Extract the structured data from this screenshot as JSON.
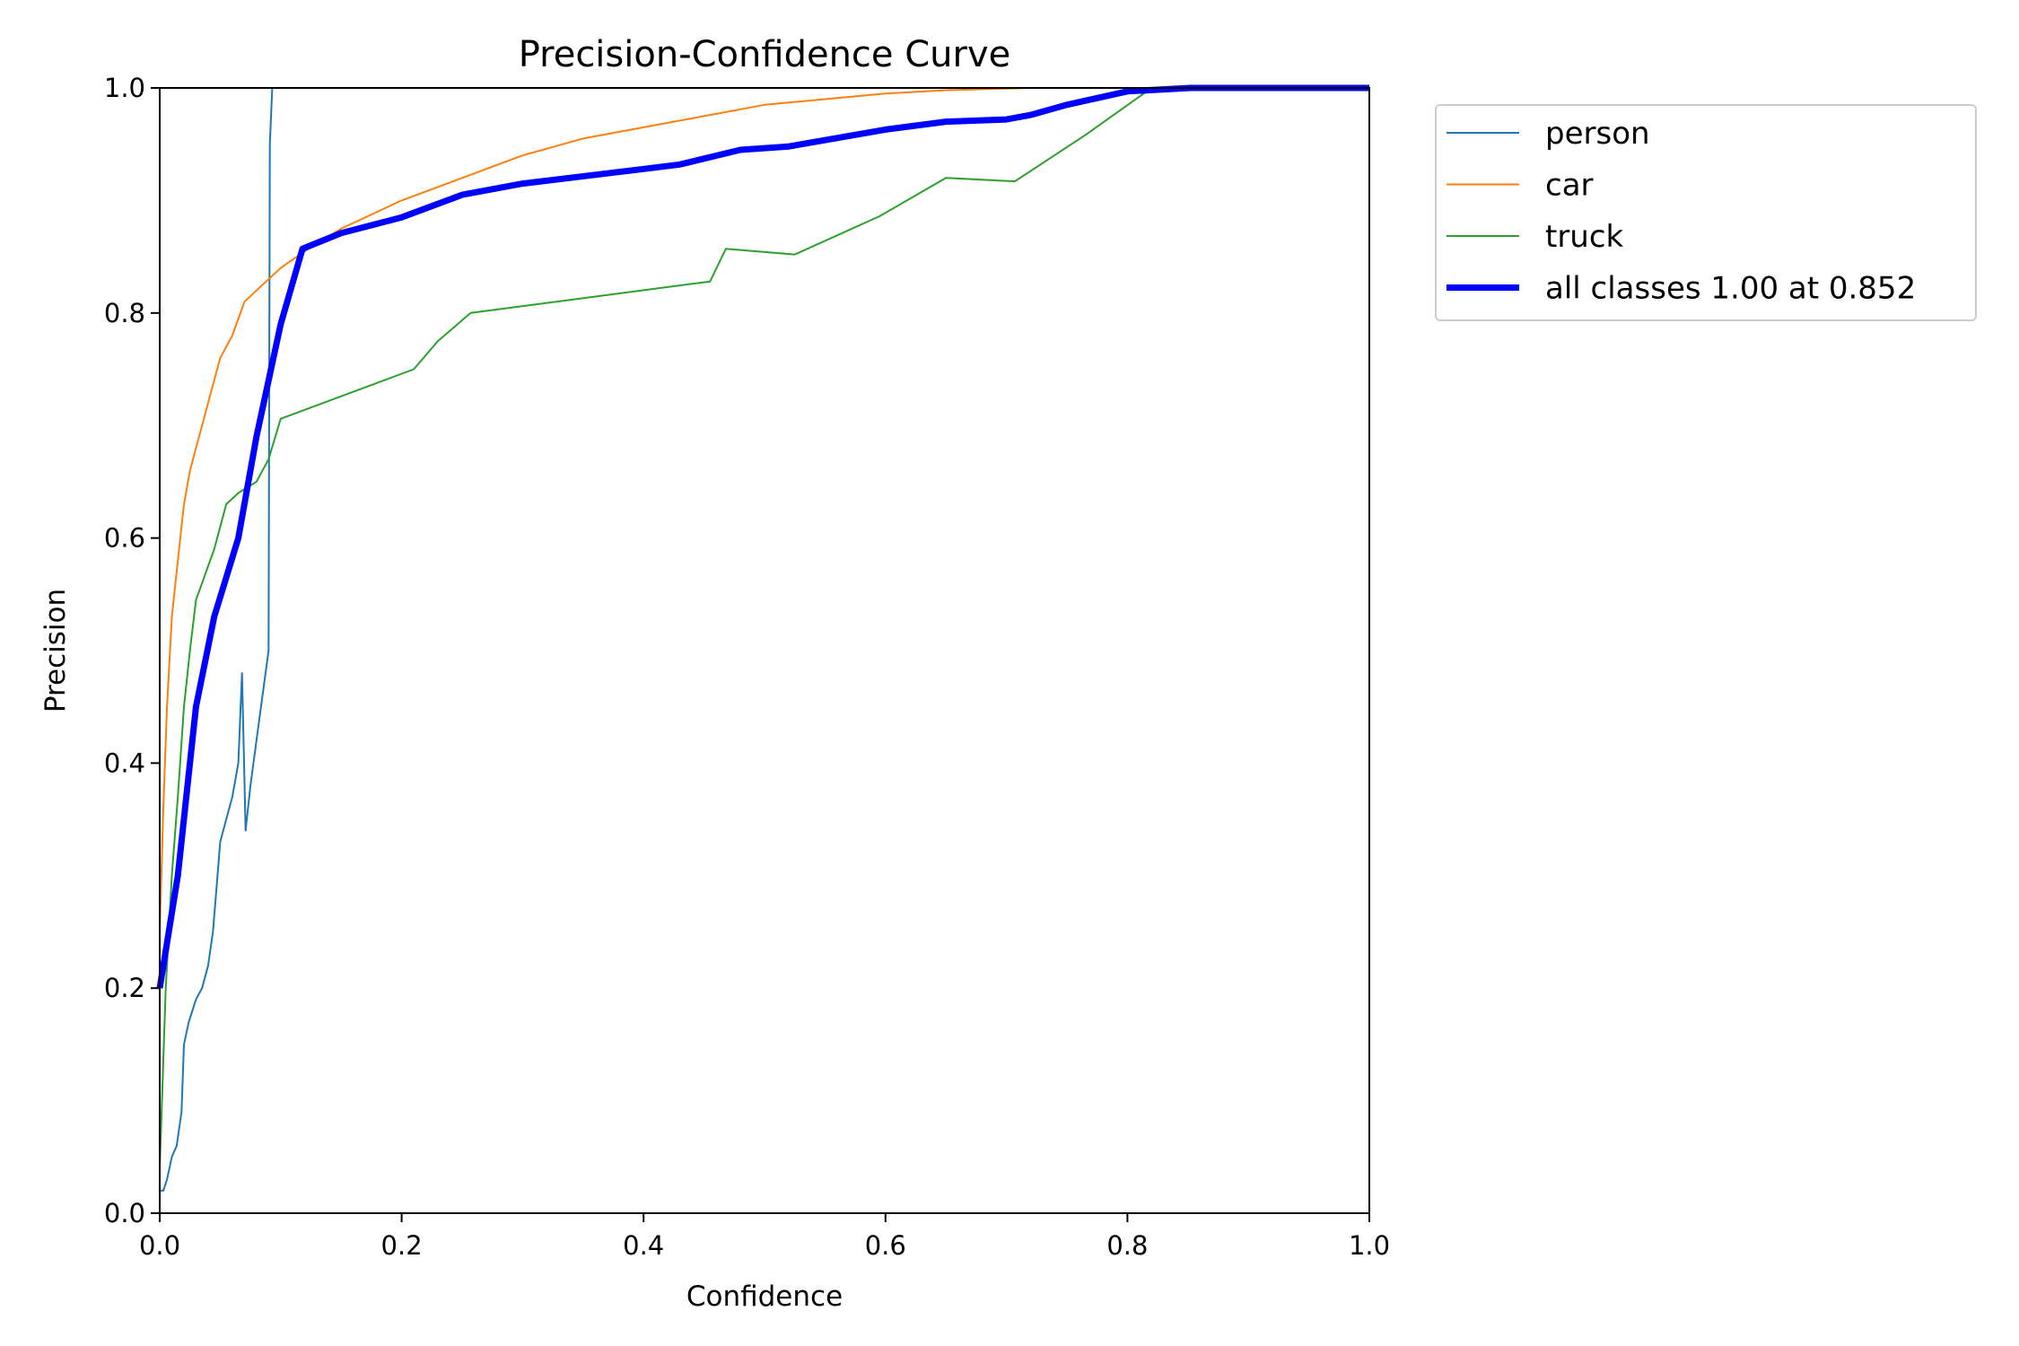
{
  "chart_data": {
    "type": "line",
    "title": "Precision-Confidence Curve",
    "xlabel": "Confidence",
    "ylabel": "Precision",
    "xlim": [
      0,
      1
    ],
    "ylim": [
      0,
      1
    ],
    "xticks": [
      "0.0",
      "0.2",
      "0.4",
      "0.6",
      "0.8",
      "1.0"
    ],
    "yticks": [
      "0.0",
      "0.2",
      "0.4",
      "0.6",
      "0.8",
      "1.0"
    ],
    "grid": false,
    "legend_position": "outside-top-right",
    "series": [
      {
        "name": "person",
        "color": "#1f77b4",
        "width": 2,
        "points": [
          [
            0.0,
            0.02
          ],
          [
            0.003,
            0.02
          ],
          [
            0.006,
            0.03
          ],
          [
            0.01,
            0.05
          ],
          [
            0.014,
            0.06
          ],
          [
            0.018,
            0.09
          ],
          [
            0.02,
            0.15
          ],
          [
            0.024,
            0.17
          ],
          [
            0.027,
            0.18
          ],
          [
            0.03,
            0.19
          ],
          [
            0.035,
            0.2
          ],
          [
            0.04,
            0.22
          ],
          [
            0.044,
            0.25
          ],
          [
            0.047,
            0.29
          ],
          [
            0.05,
            0.33
          ],
          [
            0.055,
            0.35
          ],
          [
            0.06,
            0.37
          ],
          [
            0.065,
            0.4
          ],
          [
            0.068,
            0.48
          ],
          [
            0.071,
            0.34
          ],
          [
            0.075,
            0.38
          ],
          [
            0.08,
            0.42
          ],
          [
            0.09,
            0.5
          ],
          [
            0.091,
            0.95
          ],
          [
            0.093,
            1.0
          ]
        ]
      },
      {
        "name": "car",
        "color": "#ff7f0e",
        "width": 2,
        "points": [
          [
            0.0,
            0.25
          ],
          [
            0.003,
            0.36
          ],
          [
            0.006,
            0.45
          ],
          [
            0.01,
            0.53
          ],
          [
            0.015,
            0.58
          ],
          [
            0.02,
            0.63
          ],
          [
            0.025,
            0.66
          ],
          [
            0.03,
            0.68
          ],
          [
            0.035,
            0.7
          ],
          [
            0.04,
            0.72
          ],
          [
            0.05,
            0.76
          ],
          [
            0.06,
            0.78
          ],
          [
            0.07,
            0.81
          ],
          [
            0.08,
            0.82
          ],
          [
            0.09,
            0.83
          ],
          [
            0.1,
            0.84
          ],
          [
            0.12,
            0.855
          ],
          [
            0.15,
            0.875
          ],
          [
            0.2,
            0.9
          ],
          [
            0.25,
            0.92
          ],
          [
            0.3,
            0.94
          ],
          [
            0.35,
            0.955
          ],
          [
            0.4,
            0.965
          ],
          [
            0.45,
            0.975
          ],
          [
            0.5,
            0.985
          ],
          [
            0.55,
            0.99
          ],
          [
            0.6,
            0.995
          ],
          [
            0.65,
            0.998
          ],
          [
            0.72,
            1.0
          ],
          [
            1.0,
            1.0
          ]
        ]
      },
      {
        "name": "truck",
        "color": "#2ca02c",
        "width": 2,
        "points": [
          [
            0.0,
            0.04
          ],
          [
            0.005,
            0.2
          ],
          [
            0.01,
            0.3
          ],
          [
            0.015,
            0.37
          ],
          [
            0.02,
            0.45
          ],
          [
            0.025,
            0.5
          ],
          [
            0.03,
            0.545
          ],
          [
            0.035,
            0.56
          ],
          [
            0.04,
            0.575
          ],
          [
            0.045,
            0.59
          ],
          [
            0.05,
            0.61
          ],
          [
            0.055,
            0.63
          ],
          [
            0.065,
            0.64
          ],
          [
            0.08,
            0.65
          ],
          [
            0.09,
            0.67
          ],
          [
            0.1,
            0.706
          ],
          [
            0.21,
            0.75
          ],
          [
            0.23,
            0.775
          ],
          [
            0.257,
            0.8
          ],
          [
            0.455,
            0.828
          ],
          [
            0.468,
            0.857
          ],
          [
            0.525,
            0.852
          ],
          [
            0.595,
            0.886
          ],
          [
            0.65,
            0.92
          ],
          [
            0.707,
            0.917
          ],
          [
            0.765,
            0.958
          ],
          [
            0.82,
            1.0
          ],
          [
            1.0,
            1.0
          ]
        ]
      },
      {
        "name": "all classes 1.00 at 0.852",
        "color": "#0000ff",
        "width": 7,
        "points": [
          [
            0.0,
            0.2
          ],
          [
            0.015,
            0.3
          ],
          [
            0.03,
            0.45
          ],
          [
            0.045,
            0.53
          ],
          [
            0.065,
            0.6
          ],
          [
            0.08,
            0.69
          ],
          [
            0.1,
            0.79
          ],
          [
            0.118,
            0.857
          ],
          [
            0.15,
            0.871
          ],
          [
            0.2,
            0.885
          ],
          [
            0.25,
            0.905
          ],
          [
            0.3,
            0.915
          ],
          [
            0.4,
            0.928
          ],
          [
            0.43,
            0.932
          ],
          [
            0.48,
            0.945
          ],
          [
            0.52,
            0.948
          ],
          [
            0.6,
            0.963
          ],
          [
            0.65,
            0.97
          ],
          [
            0.7,
            0.972
          ],
          [
            0.72,
            0.976
          ],
          [
            0.75,
            0.985
          ],
          [
            0.8,
            0.997
          ],
          [
            0.852,
            1.0
          ],
          [
            1.0,
            1.0
          ]
        ]
      }
    ]
  }
}
